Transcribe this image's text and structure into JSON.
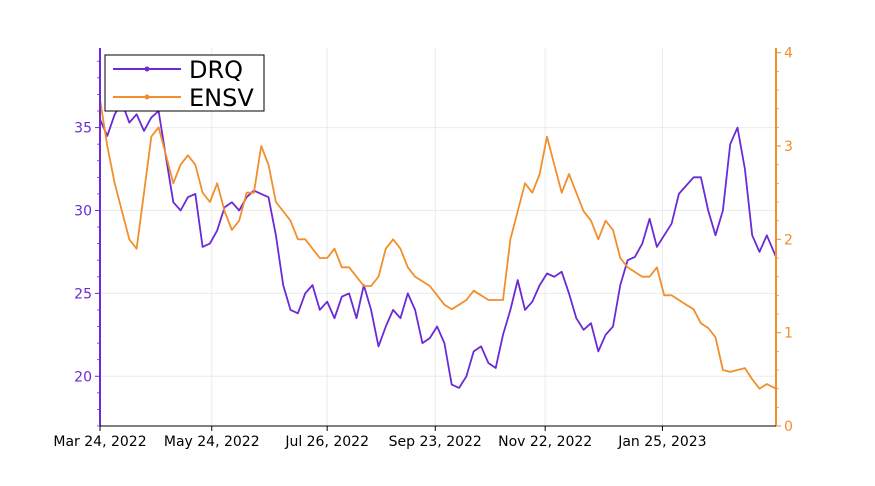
{
  "chart_data": {
    "type": "line",
    "title": "",
    "xlabel": "",
    "y_left_label": "",
    "y_right_label": "",
    "x_tick_labels": [
      "Mar 24, 2022",
      "May 24, 2022",
      "Jul 26, 2022",
      "Sep 23, 2022",
      "Nov 22, 2022",
      "Jan 25, 2023"
    ],
    "x_tick_dates": [
      "2022-03-24",
      "2022-05-24",
      "2022-07-26",
      "2022-09-23",
      "2022-11-22",
      "2023-01-25"
    ],
    "x_range": [
      "2022-03-24",
      "2023-03-28"
    ],
    "y_left": {
      "ticks": [
        20,
        25,
        30,
        35
      ],
      "range": [
        17.0,
        39.8
      ],
      "color": "#6a2bd6"
    },
    "y_right": {
      "ticks": [
        0,
        1,
        2,
        3,
        4
      ],
      "range": [
        0,
        4.05
      ],
      "color": "#f28e2b"
    },
    "legend": {
      "position": "top-left",
      "entries": [
        "DRQ",
        "ENSV"
      ]
    },
    "grid": true,
    "series": [
      {
        "name": "DRQ",
        "axis": "left",
        "color": "#6a2bd6",
        "points": [
          [
            "2022-03-24",
            35.5
          ],
          [
            "2022-03-28",
            34.5
          ],
          [
            "2022-04-01",
            35.8
          ],
          [
            "2022-04-05",
            36.5
          ],
          [
            "2022-04-09",
            35.3
          ],
          [
            "2022-04-13",
            35.8
          ],
          [
            "2022-04-17",
            34.8
          ],
          [
            "2022-04-21",
            35.6
          ],
          [
            "2022-04-25",
            36.0
          ],
          [
            "2022-04-29",
            33.2
          ],
          [
            "2022-05-03",
            30.5
          ],
          [
            "2022-05-07",
            30.0
          ],
          [
            "2022-05-11",
            30.8
          ],
          [
            "2022-05-15",
            31.0
          ],
          [
            "2022-05-19",
            27.8
          ],
          [
            "2022-05-23",
            28.0
          ],
          [
            "2022-05-27",
            28.8
          ],
          [
            "2022-05-31",
            30.2
          ],
          [
            "2022-06-04",
            30.5
          ],
          [
            "2022-06-08",
            30.0
          ],
          [
            "2022-06-12",
            30.8
          ],
          [
            "2022-06-16",
            31.2
          ],
          [
            "2022-06-20",
            31.0
          ],
          [
            "2022-06-24",
            30.8
          ],
          [
            "2022-06-28",
            28.5
          ],
          [
            "2022-07-02",
            25.5
          ],
          [
            "2022-07-06",
            24.0
          ],
          [
            "2022-07-10",
            23.8
          ],
          [
            "2022-07-14",
            25.0
          ],
          [
            "2022-07-18",
            25.5
          ],
          [
            "2022-07-22",
            24.0
          ],
          [
            "2022-07-26",
            24.5
          ],
          [
            "2022-07-30",
            23.5
          ],
          [
            "2022-08-03",
            24.8
          ],
          [
            "2022-08-07",
            25.0
          ],
          [
            "2022-08-11",
            23.5
          ],
          [
            "2022-08-15",
            25.5
          ],
          [
            "2022-08-19",
            24.0
          ],
          [
            "2022-08-23",
            21.8
          ],
          [
            "2022-08-27",
            23.0
          ],
          [
            "2022-08-31",
            24.0
          ],
          [
            "2022-09-04",
            23.5
          ],
          [
            "2022-09-08",
            25.0
          ],
          [
            "2022-09-12",
            24.0
          ],
          [
            "2022-09-16",
            22.0
          ],
          [
            "2022-09-20",
            22.3
          ],
          [
            "2022-09-24",
            23.0
          ],
          [
            "2022-09-28",
            22.0
          ],
          [
            "2022-10-02",
            19.5
          ],
          [
            "2022-10-06",
            19.3
          ],
          [
            "2022-10-10",
            20.0
          ],
          [
            "2022-10-14",
            21.5
          ],
          [
            "2022-10-18",
            21.8
          ],
          [
            "2022-10-22",
            20.8
          ],
          [
            "2022-10-26",
            20.5
          ],
          [
            "2022-10-30",
            22.5
          ],
          [
            "2022-11-03",
            24.0
          ],
          [
            "2022-11-07",
            25.8
          ],
          [
            "2022-11-11",
            24.0
          ],
          [
            "2022-11-15",
            24.5
          ],
          [
            "2022-11-19",
            25.5
          ],
          [
            "2022-11-23",
            26.2
          ],
          [
            "2022-11-27",
            26.0
          ],
          [
            "2022-12-01",
            26.3
          ],
          [
            "2022-12-05",
            25.0
          ],
          [
            "2022-12-09",
            23.5
          ],
          [
            "2022-12-13",
            22.8
          ],
          [
            "2022-12-17",
            23.2
          ],
          [
            "2022-12-21",
            21.5
          ],
          [
            "2022-12-25",
            22.5
          ],
          [
            "2022-12-29",
            23.0
          ],
          [
            "2023-01-02",
            25.5
          ],
          [
            "2023-01-06",
            27.0
          ],
          [
            "2023-01-10",
            27.2
          ],
          [
            "2023-01-14",
            28.0
          ],
          [
            "2023-01-18",
            29.5
          ],
          [
            "2023-01-22",
            27.8
          ],
          [
            "2023-01-26",
            28.5
          ],
          [
            "2023-01-30",
            29.2
          ],
          [
            "2023-02-03",
            31.0
          ],
          [
            "2023-02-07",
            31.5
          ],
          [
            "2023-02-11",
            32.0
          ],
          [
            "2023-02-15",
            32.0
          ],
          [
            "2023-02-19",
            30.0
          ],
          [
            "2023-02-23",
            28.5
          ],
          [
            "2023-02-27",
            30.0
          ],
          [
            "2023-03-03",
            34.0
          ],
          [
            "2023-03-07",
            35.0
          ],
          [
            "2023-03-11",
            32.5
          ],
          [
            "2023-03-15",
            28.5
          ],
          [
            "2023-03-19",
            27.5
          ],
          [
            "2023-03-23",
            28.5
          ],
          [
            "2023-03-28",
            27.2
          ]
        ]
      },
      {
        "name": "ENSV",
        "axis": "right",
        "color": "#f28e2b",
        "points": [
          [
            "2022-03-24",
            3.5
          ],
          [
            "2022-03-28",
            3.0
          ],
          [
            "2022-04-01",
            2.6
          ],
          [
            "2022-04-05",
            2.3
          ],
          [
            "2022-04-09",
            2.0
          ],
          [
            "2022-04-13",
            1.9
          ],
          [
            "2022-04-17",
            2.5
          ],
          [
            "2022-04-21",
            3.1
          ],
          [
            "2022-04-25",
            3.2
          ],
          [
            "2022-04-29",
            2.9
          ],
          [
            "2022-05-03",
            2.6
          ],
          [
            "2022-05-07",
            2.8
          ],
          [
            "2022-05-11",
            2.9
          ],
          [
            "2022-05-15",
            2.8
          ],
          [
            "2022-05-19",
            2.5
          ],
          [
            "2022-05-23",
            2.4
          ],
          [
            "2022-05-27",
            2.6
          ],
          [
            "2022-05-31",
            2.3
          ],
          [
            "2022-06-04",
            2.1
          ],
          [
            "2022-06-08",
            2.2
          ],
          [
            "2022-06-12",
            2.5
          ],
          [
            "2022-06-16",
            2.5
          ],
          [
            "2022-06-20",
            3.0
          ],
          [
            "2022-06-24",
            2.8
          ],
          [
            "2022-06-28",
            2.4
          ],
          [
            "2022-07-02",
            2.3
          ],
          [
            "2022-07-06",
            2.2
          ],
          [
            "2022-07-10",
            2.0
          ],
          [
            "2022-07-14",
            2.0
          ],
          [
            "2022-07-18",
            1.9
          ],
          [
            "2022-07-22",
            1.8
          ],
          [
            "2022-07-26",
            1.8
          ],
          [
            "2022-07-30",
            1.9
          ],
          [
            "2022-08-03",
            1.7
          ],
          [
            "2022-08-07",
            1.7
          ],
          [
            "2022-08-11",
            1.6
          ],
          [
            "2022-08-15",
            1.5
          ],
          [
            "2022-08-19",
            1.5
          ],
          [
            "2022-08-23",
            1.6
          ],
          [
            "2022-08-27",
            1.9
          ],
          [
            "2022-08-31",
            2.0
          ],
          [
            "2022-09-04",
            1.9
          ],
          [
            "2022-09-08",
            1.7
          ],
          [
            "2022-09-12",
            1.6
          ],
          [
            "2022-09-16",
            1.55
          ],
          [
            "2022-09-20",
            1.5
          ],
          [
            "2022-09-24",
            1.4
          ],
          [
            "2022-09-28",
            1.3
          ],
          [
            "2022-10-02",
            1.25
          ],
          [
            "2022-10-06",
            1.3
          ],
          [
            "2022-10-10",
            1.35
          ],
          [
            "2022-10-14",
            1.45
          ],
          [
            "2022-10-18",
            1.4
          ],
          [
            "2022-10-22",
            1.35
          ],
          [
            "2022-10-26",
            1.35
          ],
          [
            "2022-10-30",
            1.35
          ],
          [
            "2022-11-03",
            2.0
          ],
          [
            "2022-11-07",
            2.3
          ],
          [
            "2022-11-11",
            2.6
          ],
          [
            "2022-11-15",
            2.5
          ],
          [
            "2022-11-19",
            2.7
          ],
          [
            "2022-11-23",
            3.1
          ],
          [
            "2022-11-27",
            2.8
          ],
          [
            "2022-12-01",
            2.5
          ],
          [
            "2022-12-05",
            2.7
          ],
          [
            "2022-12-09",
            2.5
          ],
          [
            "2022-12-13",
            2.3
          ],
          [
            "2022-12-17",
            2.2
          ],
          [
            "2022-12-21",
            2.0
          ],
          [
            "2022-12-25",
            2.2
          ],
          [
            "2022-12-29",
            2.1
          ],
          [
            "2023-01-02",
            1.8
          ],
          [
            "2023-01-06",
            1.7
          ],
          [
            "2023-01-10",
            1.65
          ],
          [
            "2023-01-14",
            1.6
          ],
          [
            "2023-01-18",
            1.6
          ],
          [
            "2023-01-22",
            1.7
          ],
          [
            "2023-01-26",
            1.4
          ],
          [
            "2023-01-30",
            1.4
          ],
          [
            "2023-02-03",
            1.35
          ],
          [
            "2023-02-07",
            1.3
          ],
          [
            "2023-02-11",
            1.25
          ],
          [
            "2023-02-15",
            1.1
          ],
          [
            "2023-02-19",
            1.05
          ],
          [
            "2023-02-23",
            0.95
          ],
          [
            "2023-02-27",
            0.6
          ],
          [
            "2023-03-03",
            0.58
          ],
          [
            "2023-03-07",
            0.6
          ],
          [
            "2023-03-11",
            0.62
          ],
          [
            "2023-03-15",
            0.5
          ],
          [
            "2023-03-19",
            0.4
          ],
          [
            "2023-03-23",
            0.45
          ],
          [
            "2023-03-28",
            0.4
          ]
        ]
      }
    ]
  }
}
